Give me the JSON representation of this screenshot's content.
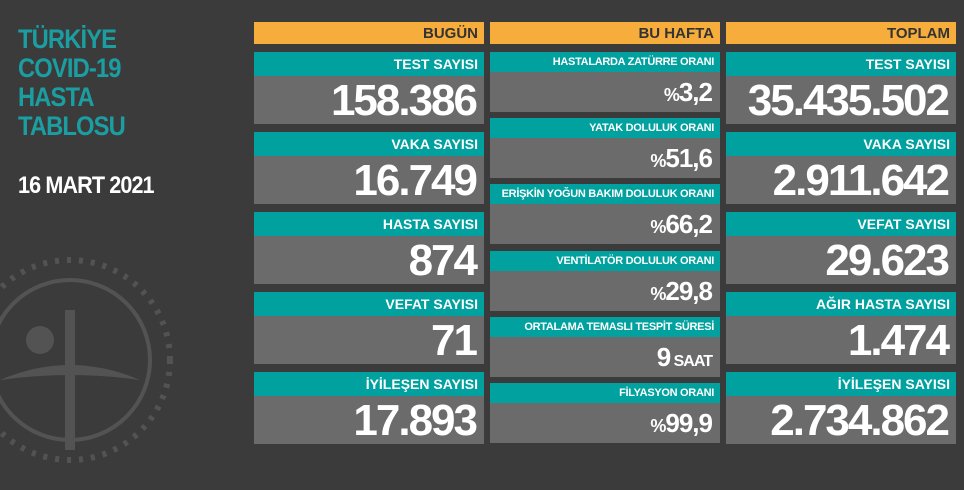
{
  "title": [
    "TÜRKİYE",
    "COVID-19",
    "HASTA",
    "TABLOSU"
  ],
  "date": "16 MART 2021",
  "colors": {
    "accent_orange": "#f7ad3b",
    "teal": "#00a19e",
    "card_gray": "#6b6b6b",
    "background": "#3b3b3b"
  },
  "today": {
    "header": "BUGÜN",
    "items": [
      {
        "label": "TEST SAYISI",
        "value": "158.386"
      },
      {
        "label": "VAKA SAYISI",
        "value": "16.749"
      },
      {
        "label": "HASTA SAYISI",
        "value": "874"
      },
      {
        "label": "VEFAT SAYISI",
        "value": "71"
      },
      {
        "label": "İYİLEŞEN SAYISI",
        "value": "17.893"
      }
    ]
  },
  "week": {
    "header": "BU HAFTA",
    "items": [
      {
        "label": "HASTALARDA ZATÜRRE ORANI",
        "prefix": "%",
        "value": "3,2"
      },
      {
        "label": "YATAK DOLULUK ORANI",
        "prefix": "%",
        "value": "51,6"
      },
      {
        "label": "ERİŞKİN YOĞUN BAKIM DOLULUK ORANI",
        "prefix": "%",
        "value": "66,2"
      },
      {
        "label": "VENTİLATÖR DOLULUK ORANI",
        "prefix": "%",
        "value": "29,8"
      },
      {
        "label": "ORTALAMA TEMASLI TESPİT SÜRESİ",
        "value": "9",
        "suffix": " SAAT"
      },
      {
        "label": "FİLYASYON ORANI",
        "prefix": "%",
        "value": "99,9"
      }
    ]
  },
  "total": {
    "header": "TOPLAM",
    "items": [
      {
        "label": "TEST SAYISI",
        "value": "35.435.502"
      },
      {
        "label": "VAKA SAYISI",
        "value": "2.911.642"
      },
      {
        "label": "VEFAT SAYISI",
        "value": "29.623"
      },
      {
        "label": "AĞIR HASTA SAYISI",
        "value": "1.474"
      },
      {
        "label": "İYİLEŞEN SAYISI",
        "value": "2.734.862"
      }
    ]
  }
}
